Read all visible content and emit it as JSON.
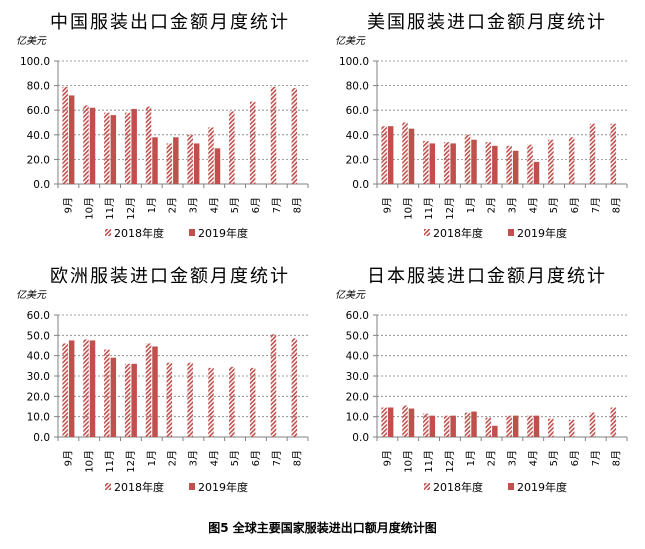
{
  "caption": "图5 全球主要国家服装进出口额月度统计图",
  "colors": {
    "y2018": "#c0504d",
    "y2019": "#c0504d",
    "axis": "#808080",
    "grid": "#808080"
  },
  "chart_data": [
    {
      "type": "bar",
      "title": "中国服装出口金额月度统计",
      "ylabel": "亿美元",
      "ylim": [
        0,
        100
      ],
      "yticks": [
        "0.0",
        "20.0",
        "40.0",
        "60.0",
        "80.0",
        "100.0"
      ],
      "grid": true,
      "legend": "bottom",
      "categories": [
        "9月",
        "10月",
        "11月",
        "12月",
        "1月",
        "2月",
        "3月",
        "4月",
        "5月",
        "6月",
        "7月",
        "8月"
      ],
      "series": [
        {
          "name": "2018年度",
          "pattern": "hatched",
          "values": [
            79,
            64,
            58,
            58,
            63,
            33,
            40,
            46,
            59,
            67,
            79,
            78
          ]
        },
        {
          "name": "2019年度",
          "pattern": "solid",
          "values": [
            72,
            62,
            56,
            61,
            38,
            38,
            33,
            29,
            null,
            null,
            null,
            null
          ]
        }
      ]
    },
    {
      "type": "bar",
      "title": "美国服装进口金额月度统计",
      "ylabel": "亿美元",
      "ylim": [
        0,
        100
      ],
      "yticks": [
        "0.0",
        "20.0",
        "40.0",
        "60.0",
        "80.0",
        "100.0"
      ],
      "grid": true,
      "legend": "bottom",
      "categories": [
        "9月",
        "10月",
        "11月",
        "12月",
        "1月",
        "2月",
        "3月",
        "4月",
        "5月",
        "6月",
        "7月",
        "8月"
      ],
      "series": [
        {
          "name": "2018年度",
          "pattern": "hatched",
          "values": [
            47,
            50,
            35,
            34,
            40,
            34,
            31,
            32,
            36,
            38,
            49,
            49
          ]
        },
        {
          "name": "2019年度",
          "pattern": "solid",
          "values": [
            47,
            45,
            33,
            33,
            36,
            31,
            27,
            18,
            null,
            null,
            null,
            null
          ]
        }
      ]
    },
    {
      "type": "bar",
      "title": "欧洲服装进口金额月度统计",
      "ylabel": "亿美元",
      "ylim": [
        0,
        60
      ],
      "yticks": [
        "0.0",
        "10.0",
        "20.0",
        "30.0",
        "40.0",
        "50.0",
        "60.0"
      ],
      "grid": true,
      "legend": "bottom",
      "categories": [
        "9月",
        "10月",
        "11月",
        "12月",
        "1月",
        "2月",
        "3月",
        "4月",
        "5月",
        "6月",
        "7月",
        "8月"
      ],
      "series": [
        {
          "name": "2018年度",
          "pattern": "hatched",
          "values": [
            46,
            48,
            43,
            36,
            46,
            36.5,
            36.5,
            34,
            34.5,
            34,
            50.5,
            48.5
          ]
        },
        {
          "name": "2019年度",
          "pattern": "solid",
          "values": [
            47.5,
            47.5,
            39,
            36,
            44.5,
            null,
            null,
            null,
            null,
            null,
            null,
            null
          ]
        }
      ]
    },
    {
      "type": "bar",
      "title": "日本服装进口金额月度统计",
      "ylabel": "亿美元",
      "ylim": [
        0,
        60
      ],
      "yticks": [
        "0.0",
        "10.0",
        "20.0",
        "30.0",
        "40.0",
        "50.0",
        "60.0"
      ],
      "grid": true,
      "legend": "bottom",
      "categories": [
        "9月",
        "10月",
        "11月",
        "12月",
        "1月",
        "2月",
        "3月",
        "4月",
        "5月",
        "6月",
        "7月",
        "8月"
      ],
      "series": [
        {
          "name": "2018年度",
          "pattern": "hatched",
          "values": [
            14.5,
            15.5,
            11.5,
            10.5,
            12,
            9.5,
            10.5,
            10.5,
            9,
            8.5,
            12,
            14.5
          ]
        },
        {
          "name": "2019年度",
          "pattern": "solid",
          "values": [
            14.5,
            14,
            10.5,
            10.5,
            12.5,
            5.5,
            10.5,
            10.5,
            null,
            null,
            null,
            null
          ]
        }
      ]
    }
  ]
}
